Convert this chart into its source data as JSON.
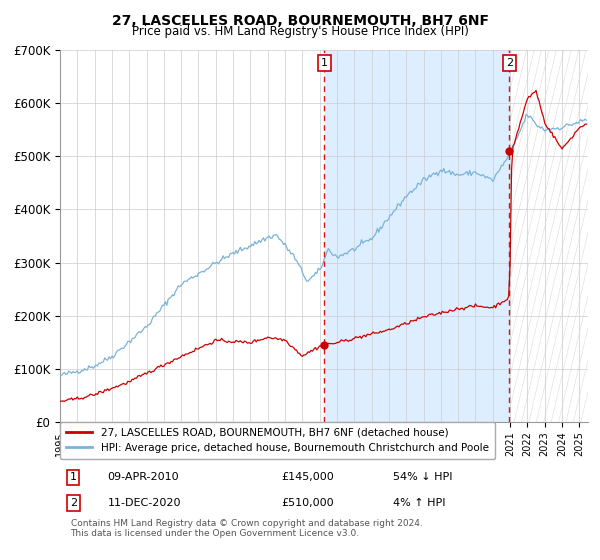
{
  "title": "27, LASCELLES ROAD, BOURNEMOUTH, BH7 6NF",
  "subtitle": "Price paid vs. HM Land Registry's House Price Index (HPI)",
  "legend_line1": "27, LASCELLES ROAD, BOURNEMOUTH, BH7 6NF (detached house)",
  "legend_line2": "HPI: Average price, detached house, Bournemouth Christchurch and Poole",
  "annotation1_label": "1",
  "annotation1_date": "09-APR-2010",
  "annotation1_price": "£145,000",
  "annotation1_hpi": "54% ↓ HPI",
  "annotation2_label": "2",
  "annotation2_date": "11-DEC-2020",
  "annotation2_price": "£510,000",
  "annotation2_hpi": "4% ↑ HPI",
  "marker1_x": 2010.27,
  "marker1_y": 145000,
  "marker2_x": 2020.95,
  "marker2_y": 510000,
  "vline1_x": 2010.27,
  "vline2_x": 2020.95,
  "hpi_line_color": "#7ab3d8",
  "price_line_color": "#cc0000",
  "marker_color": "#cc0000",
  "shade_color": "#dceeff",
  "hatch_color": "#cccccc",
  "vline_color": "#cc0000",
  "background_color": "#ffffff",
  "grid_color": "#cccccc",
  "ylim": [
    0,
    700000
  ],
  "yticks": [
    0,
    100000,
    200000,
    300000,
    400000,
    500000,
    600000,
    700000
  ],
  "ytick_labels": [
    "£0",
    "£100K",
    "£200K",
    "£300K",
    "£400K",
    "£500K",
    "£600K",
    "£700K"
  ],
  "xlim_start": 1995,
  "xlim_end": 2025.5,
  "footnote_line1": "Contains HM Land Registry data © Crown copyright and database right 2024.",
  "footnote_line2": "This data is licensed under the Open Government Licence v3.0."
}
